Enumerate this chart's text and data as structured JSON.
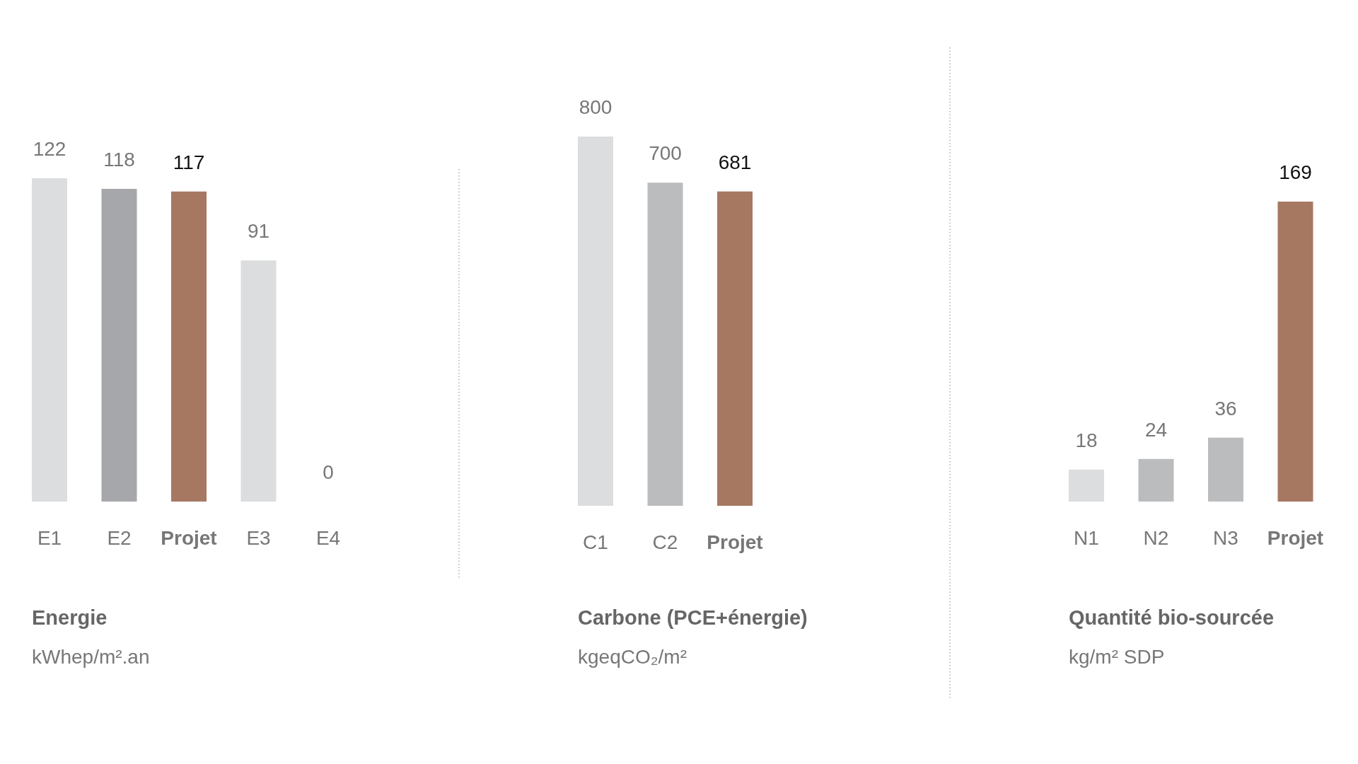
{
  "chart_data": [
    {
      "type": "bar",
      "title": "Energie",
      "subtitle": "kWhep/m².an",
      "categories": [
        "E1",
        "E2",
        "Projet",
        "E3",
        "E4"
      ],
      "values": [
        122,
        118,
        117,
        91,
        0
      ],
      "colors": [
        "#dcdddf",
        "#a6a7aa",
        "#a67862",
        "#dcdddf",
        "#dcdddf"
      ],
      "data_labels": true
    },
    {
      "type": "bar",
      "title": "Carbone (PCE+énergie)",
      "subtitle": "kgeqCO₂/m²",
      "categories": [
        "C1",
        "C2",
        "Projet"
      ],
      "values": [
        800,
        700,
        681
      ],
      "colors": [
        "#dcdddf",
        "#bbbcbe",
        "#a67862"
      ],
      "data_labels": true
    },
    {
      "type": "bar",
      "title": "Quantité bio-sourcée",
      "subtitle": "kg/m² SDP",
      "categories": [
        "N1",
        "N2",
        "N3",
        "Projet"
      ],
      "values": [
        18,
        24,
        36,
        169
      ],
      "colors": [
        "#dcdddf",
        "#bbbcbe",
        "#bbbcbe",
        "#a67862"
      ],
      "data_labels": true
    }
  ]
}
